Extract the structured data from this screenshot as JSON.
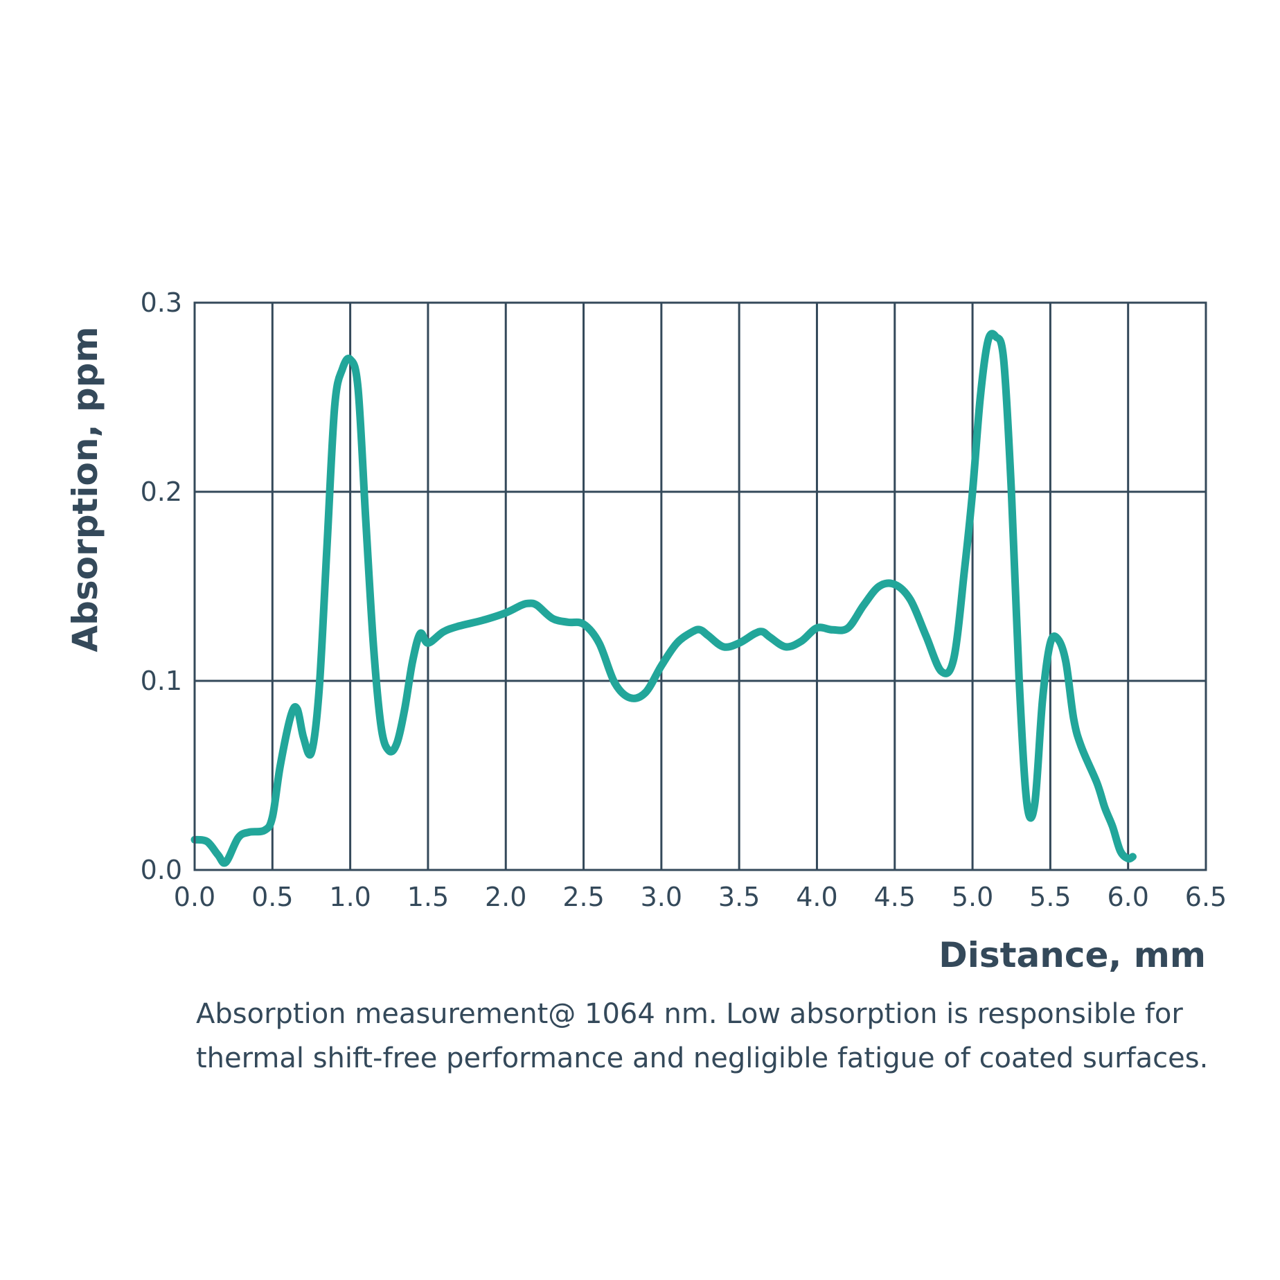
{
  "chart_data": {
    "type": "line",
    "title": "",
    "xlabel": "Distance, mm",
    "ylabel": "Absorption, ppm",
    "xlim": [
      0,
      6.5
    ],
    "ylim": [
      0,
      0.3
    ],
    "x_ticks": [
      "0.0",
      "0.5",
      "1.0",
      "1.5",
      "2.0",
      "2.5",
      "3.0",
      "3.5",
      "4.0",
      "4.5",
      "5.0",
      "5.5",
      "6.0",
      "6.5"
    ],
    "y_ticks": [
      "0.0",
      "0.1",
      "0.2",
      "0.3"
    ],
    "grid": true,
    "line_color": "#22a69a",
    "grid_color": "#34495a",
    "series": [
      {
        "x": [
          0.0,
          0.08,
          0.15,
          0.2,
          0.28,
          0.35,
          0.45,
          0.5,
          0.55,
          0.62,
          0.66,
          0.7,
          0.75,
          0.8,
          0.85,
          0.9,
          0.95,
          1.0,
          1.05,
          1.1,
          1.15,
          1.2,
          1.25,
          1.3,
          1.35,
          1.4,
          1.45,
          1.5,
          1.6,
          1.7,
          1.85,
          2.0,
          2.1,
          2.15,
          2.2,
          2.3,
          2.4,
          2.5,
          2.6,
          2.7,
          2.8,
          2.9,
          3.0,
          3.1,
          3.2,
          3.25,
          3.3,
          3.4,
          3.5,
          3.6,
          3.65,
          3.7,
          3.8,
          3.9,
          4.0,
          4.1,
          4.2,
          4.3,
          4.4,
          4.5,
          4.6,
          4.7,
          4.8,
          4.88,
          4.95,
          5.0,
          5.05,
          5.1,
          5.15,
          5.2,
          5.25,
          5.3,
          5.35,
          5.4,
          5.45,
          5.5,
          5.55,
          5.6,
          5.65,
          5.7,
          5.8,
          5.85,
          5.9,
          5.95,
          6.0,
          6.03
        ],
        "y": [
          0.016,
          0.015,
          0.008,
          0.004,
          0.017,
          0.02,
          0.021,
          0.028,
          0.055,
          0.082,
          0.085,
          0.07,
          0.062,
          0.095,
          0.17,
          0.245,
          0.265,
          0.27,
          0.255,
          0.185,
          0.118,
          0.075,
          0.063,
          0.067,
          0.085,
          0.11,
          0.125,
          0.12,
          0.126,
          0.129,
          0.132,
          0.136,
          0.14,
          0.141,
          0.14,
          0.133,
          0.131,
          0.13,
          0.12,
          0.099,
          0.091,
          0.094,
          0.108,
          0.12,
          0.126,
          0.127,
          0.124,
          0.118,
          0.12,
          0.125,
          0.126,
          0.123,
          0.118,
          0.121,
          0.128,
          0.127,
          0.128,
          0.14,
          0.15,
          0.151,
          0.143,
          0.124,
          0.105,
          0.112,
          0.16,
          0.2,
          0.25,
          0.28,
          0.282,
          0.27,
          0.2,
          0.1,
          0.035,
          0.035,
          0.09,
          0.12,
          0.122,
          0.11,
          0.08,
          0.065,
          0.046,
          0.033,
          0.023,
          0.01,
          0.006,
          0.007
        ]
      }
    ]
  },
  "caption": "Absorption measurement@ 1064 nm. Low absorption is responsible for thermal shift-free performance and negligible fatigue of coated surfaces."
}
